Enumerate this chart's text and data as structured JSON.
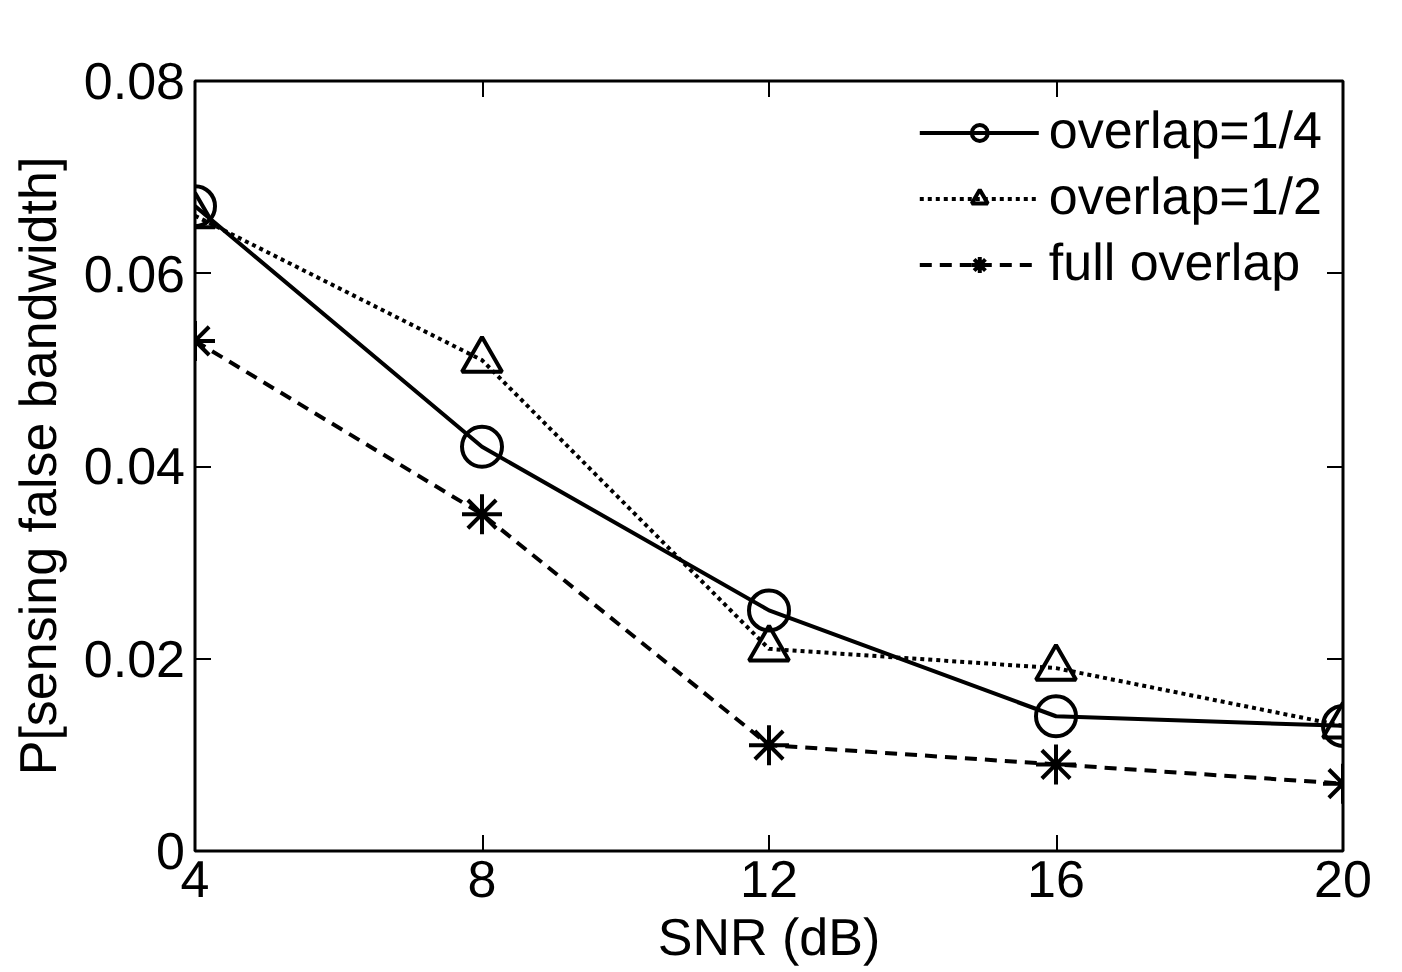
{
  "chart_data": {
    "type": "line",
    "xlabel": "SNR (dB)",
    "ylabel": "P[sensing false bandwidth]",
    "x": [
      4,
      8,
      12,
      16,
      20
    ],
    "xlim": [
      4,
      20
    ],
    "xticks": [
      4,
      8,
      12,
      16,
      20
    ],
    "ylim": [
      0,
      0.08
    ],
    "yticks": [
      0,
      0.02,
      0.04,
      0.06,
      0.08
    ],
    "grid": false,
    "legend": "top right",
    "series": [
      {
        "name": "overlap=1/4",
        "color": "#000000",
        "marker": "circle",
        "line_style": "solid",
        "values": [
          0.067,
          0.042,
          0.025,
          0.014,
          0.013
        ]
      },
      {
        "name": "overlap=1/2",
        "color": "#000000",
        "marker": "triangle",
        "line_style": "dotted",
        "values": [
          0.066,
          0.051,
          0.021,
          0.019,
          0.013
        ]
      },
      {
        "name": "full overlap",
        "color": "#000000",
        "marker": "cross",
        "line_style": "dashed",
        "values": [
          0.053,
          0.035,
          0.011,
          0.009,
          0.007
        ]
      }
    ]
  }
}
